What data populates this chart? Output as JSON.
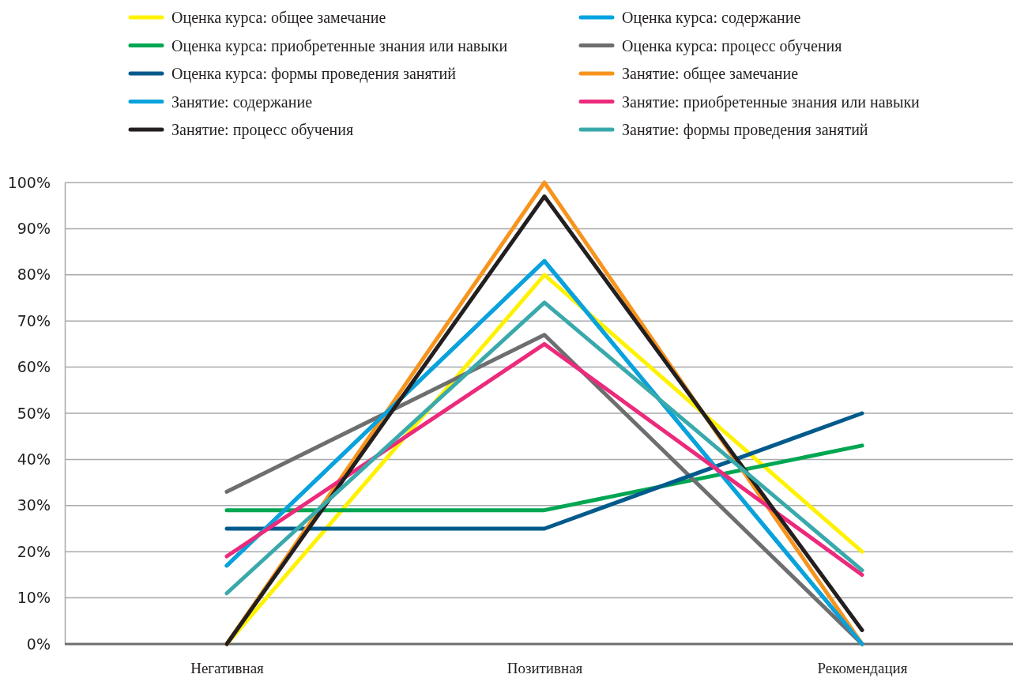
{
  "chart_data": {
    "type": "line",
    "categories": [
      "Негативная",
      "Позитивная",
      "Рекомендация"
    ],
    "ylim": [
      0,
      100
    ],
    "yticks": [
      {
        "value": 0,
        "label": "0%"
      },
      {
        "value": 10,
        "label": "10%"
      },
      {
        "value": 20,
        "label": "20%"
      },
      {
        "value": 30,
        "label": "30%"
      },
      {
        "value": 40,
        "label": "40%"
      },
      {
        "value": 50,
        "label": "50%"
      },
      {
        "value": 60,
        "label": "60%"
      },
      {
        "value": 70,
        "label": "70%"
      },
      {
        "value": 80,
        "label": "80%"
      },
      {
        "value": 90,
        "label": "90%"
      },
      {
        "value": 100,
        "label": "100%"
      }
    ],
    "grid": "y",
    "legend": "top",
    "marker": "none",
    "line_style": "solid",
    "series": [
      {
        "name": "Оценка курса: общее замечание",
        "color": "#fff200",
        "values": [
          0,
          80,
          20
        ]
      },
      {
        "name": "Оценка курса: содержание",
        "color": "#00a3e0",
        "values": [
          17,
          83,
          0
        ]
      },
      {
        "name": "Оценка курса: приобретенные знания или навыки",
        "color": "#00a651",
        "values": [
          29,
          29,
          43
        ]
      },
      {
        "name": "Оценка курса: процесс обучения",
        "color": "#6d6e70",
        "values": [
          33,
          67,
          0
        ]
      },
      {
        "name": "Оценка курса: формы проведения занятий",
        "color": "#005a8c",
        "values": [
          25,
          25,
          50
        ]
      },
      {
        "name": "Занятие: общее замечание",
        "color": "#f7941d",
        "values": [
          0,
          100,
          0
        ]
      },
      {
        "name": "Занятие: содержание",
        "color": "#0aa2dc",
        "values": [
          17,
          83,
          0
        ]
      },
      {
        "name": "Занятие: приобретенные знания или навыки",
        "color": "#ec2a7b",
        "values": [
          19,
          65,
          15
        ]
      },
      {
        "name": "Занятие: процесс обучения",
        "color": "#231f20",
        "values": [
          0,
          97,
          3
        ]
      },
      {
        "name": "Занятие: формы проведения занятий",
        "color": "#3aa9ab",
        "values": [
          11,
          74,
          16
        ]
      }
    ]
  }
}
